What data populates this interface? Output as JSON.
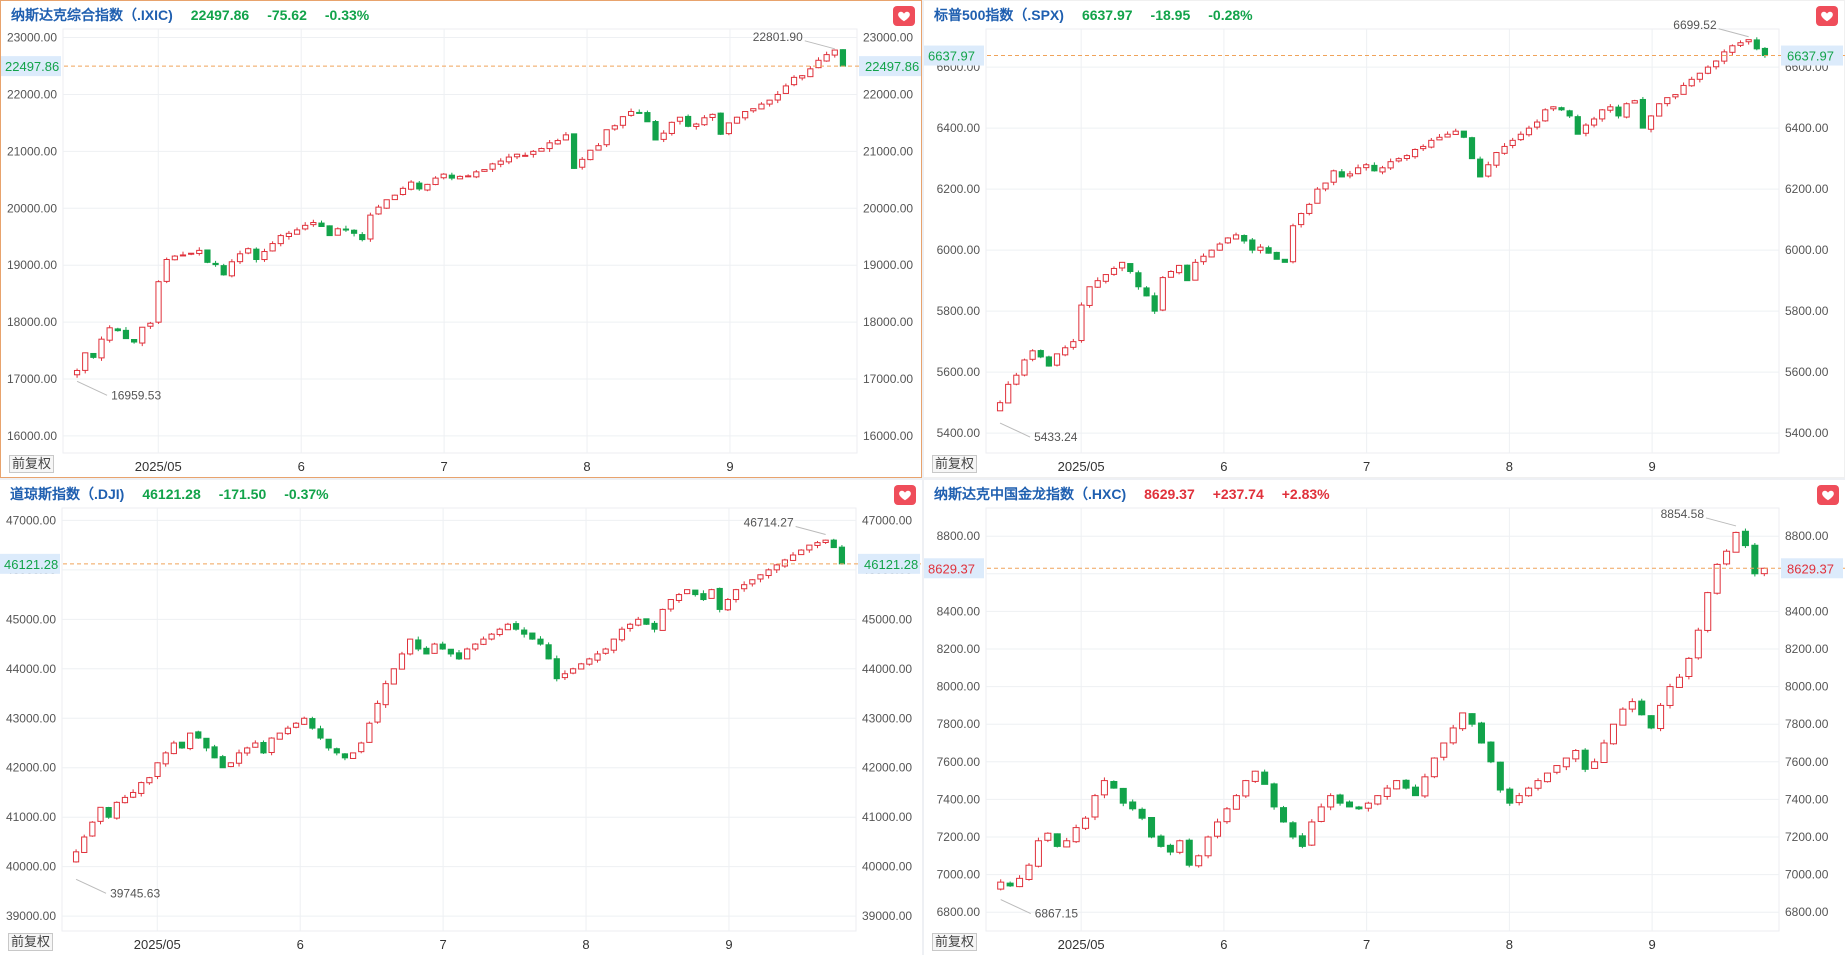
{
  "panels": [
    {
      "id": "ixic",
      "name": "纳斯达克综合指数（.IXIC)",
      "price": "22497.86",
      "change": "-75.62",
      "change_pct": "-0.33%",
      "direction": "down",
      "fq_label": "前复权",
      "chart_data": {
        "type": "candlestick",
        "x_ticks": [
          "2025/05",
          "6",
          "7",
          "8",
          "9"
        ],
        "y_ticks": [
          "16000.00",
          "17000.00",
          "18000.00",
          "19000.00",
          "20000.00",
          "21000.00",
          "22000.00",
          "23000.00"
        ],
        "ylim": [
          15700,
          23150
        ],
        "current": 22497.86,
        "current_label": "22497.86",
        "high_label": "22801.90",
        "low_label": "16959.53",
        "high": 22801.9,
        "low": 16959.53,
        "closes": [
          17150,
          17460,
          17380,
          17700,
          17900,
          17850,
          17710,
          17650,
          17910,
          17980,
          18710,
          19100,
          19160,
          19180,
          19210,
          19260,
          19050,
          19010,
          18830,
          19060,
          19200,
          19290,
          19100,
          19240,
          19380,
          19520,
          19560,
          19620,
          19700,
          19750,
          19680,
          19520,
          19640,
          19620,
          19560,
          19450,
          19880,
          20020,
          20150,
          20230,
          20350,
          20460,
          20340,
          20420,
          20530,
          20600,
          20530,
          20560,
          20570,
          20640,
          20680,
          20780,
          20830,
          20900,
          20950,
          20930,
          21000,
          21050,
          21150,
          21190,
          21290,
          20700,
          20860,
          21020,
          21100,
          21380,
          21450,
          21610,
          21700,
          21680,
          21520,
          21200,
          21320,
          21510,
          21600,
          21440,
          21480,
          21590,
          21650,
          21300,
          21500,
          21600,
          21700,
          21750,
          21830,
          21900,
          22000,
          22150,
          22300,
          22330,
          22450,
          22600,
          22700,
          22780,
          22497.86
        ]
      }
    },
    {
      "id": "spx",
      "name": "标普500指数（.SPX)",
      "price": "6637.97",
      "change": "-18.95",
      "change_pct": "-0.28%",
      "direction": "down",
      "fq_label": "前复权",
      "chart_data": {
        "type": "candlestick",
        "x_ticks": [
          "2025/05",
          "6",
          "7",
          "8",
          "9"
        ],
        "y_ticks": [
          "5400.00",
          "5600.00",
          "5800.00",
          "6000.00",
          "6200.00",
          "6400.00",
          "6600.00"
        ],
        "ylim": [
          5335,
          6725
        ],
        "current": 6637.97,
        "current_label": "6637.97",
        "high_label": "6699.52",
        "low_label": "5433.24",
        "high": 6699.52,
        "low": 5433.24,
        "closes": [
          5500,
          5560,
          5590,
          5640,
          5670,
          5650,
          5620,
          5660,
          5680,
          5700,
          5820,
          5880,
          5900,
          5920,
          5940,
          5960,
          5930,
          5880,
          5850,
          5800,
          5910,
          5930,
          5950,
          5900,
          5960,
          5980,
          6000,
          6020,
          6040,
          6050,
          6030,
          6000,
          6010,
          5990,
          5970,
          5960,
          6080,
          6120,
          6150,
          6200,
          6220,
          6260,
          6240,
          6250,
          6270,
          6280,
          6260,
          6270,
          6290,
          6300,
          6310,
          6330,
          6340,
          6360,
          6370,
          6380,
          6390,
          6370,
          6300,
          6240,
          6280,
          6320,
          6340,
          6360,
          6380,
          6400,
          6420,
          6460,
          6470,
          6460,
          6440,
          6380,
          6410,
          6430,
          6460,
          6470,
          6440,
          6480,
          6490,
          6400,
          6440,
          6480,
          6500,
          6510,
          6540,
          6560,
          6580,
          6600,
          6620,
          6650,
          6670,
          6680,
          6690,
          6660,
          6637.97
        ]
      }
    },
    {
      "id": "dji",
      "name": "道琼斯指数（.DJI)",
      "price": "46121.28",
      "change": "-171.50",
      "change_pct": "-0.37%",
      "direction": "down",
      "fq_label": "前复权",
      "chart_data": {
        "type": "candlestick",
        "x_ticks": [
          "2025/05",
          "6",
          "7",
          "8",
          "9"
        ],
        "y_ticks": [
          "39000.00",
          "40000.00",
          "41000.00",
          "42000.00",
          "43000.00",
          "44000.00",
          "45000.00",
          "46000.00",
          "47000.00"
        ],
        "ylim": [
          38700,
          47250
        ],
        "current": 46121.28,
        "current_label": "46121.28",
        "high_label": "46714.27",
        "low_label": "39745.63",
        "high": 46714.27,
        "low": 39745.63,
        "closes": [
          40300,
          40600,
          40900,
          41200,
          41000,
          41300,
          41400,
          41500,
          41700,
          41800,
          42100,
          42300,
          42500,
          42400,
          42700,
          42600,
          42400,
          42200,
          42000,
          42100,
          42300,
          42400,
          42500,
          42300,
          42600,
          42700,
          42800,
          42900,
          43000,
          42800,
          42600,
          42400,
          42300,
          42200,
          42300,
          42500,
          42900,
          43300,
          43700,
          44000,
          44300,
          44600,
          44400,
          44300,
          44500,
          44400,
          44300,
          44200,
          44400,
          44500,
          44600,
          44700,
          44800,
          44900,
          44800,
          44700,
          44600,
          44500,
          44200,
          43800,
          43900,
          44000,
          44100,
          44200,
          44300,
          44400,
          44600,
          44800,
          44900,
          45000,
          44900,
          44800,
          45200,
          45400,
          45500,
          45600,
          45500,
          45400,
          45600,
          45200,
          45400,
          45600,
          45700,
          45800,
          45900,
          46000,
          46100,
          46200,
          46300,
          46400,
          46500,
          46550,
          46600,
          46450,
          46121.28
        ]
      }
    },
    {
      "id": "hxc",
      "name": "纳斯达克中国金龙指数（.HXC)",
      "price": "8629.37",
      "change": "+237.74",
      "change_pct": "+2.83%",
      "direction": "up",
      "fq_label": "前复权",
      "chart_data": {
        "type": "candlestick",
        "x_ticks": [
          "2025/05",
          "6",
          "7",
          "8",
          "9"
        ],
        "y_ticks": [
          "6800.00",
          "7000.00",
          "7200.00",
          "7400.00",
          "7600.00",
          "7800.00",
          "8000.00",
          "8200.00",
          "8400.00",
          "8600.00",
          "8800.00"
        ],
        "ylim": [
          6700,
          8950
        ],
        "current": 8629.37,
        "current_label": "8629.37",
        "high_label": "8854.58",
        "low_label": "6867.15",
        "high": 8854.58,
        "low": 6867.15,
        "closes": [
          6960,
          6940,
          6980,
          7050,
          7180,
          7220,
          7150,
          7180,
          7250,
          7300,
          7420,
          7500,
          7460,
          7380,
          7350,
          7300,
          7200,
          7150,
          7120,
          7180,
          7050,
          7100,
          7200,
          7280,
          7350,
          7420,
          7500,
          7550,
          7480,
          7360,
          7280,
          7200,
          7150,
          7280,
          7360,
          7420,
          7380,
          7360,
          7350,
          7380,
          7420,
          7460,
          7500,
          7460,
          7420,
          7520,
          7620,
          7700,
          7780,
          7860,
          7800,
          7700,
          7600,
          7450,
          7380,
          7420,
          7460,
          7500,
          7540,
          7580,
          7620,
          7660,
          7560,
          7600,
          7700,
          7800,
          7880,
          7920,
          7850,
          7780,
          7900,
          8000,
          8050,
          8150,
          8300,
          8500,
          8650,
          8720,
          8820,
          8750,
          8600,
          8629.37
        ]
      }
    }
  ],
  "colors": {
    "up": "#e0313b",
    "down": "#12a34a",
    "current_line": "#f0a35a",
    "grid": "#eef0f3",
    "axis_text": "#555555",
    "current_badge_bg": "#dcebfb"
  }
}
